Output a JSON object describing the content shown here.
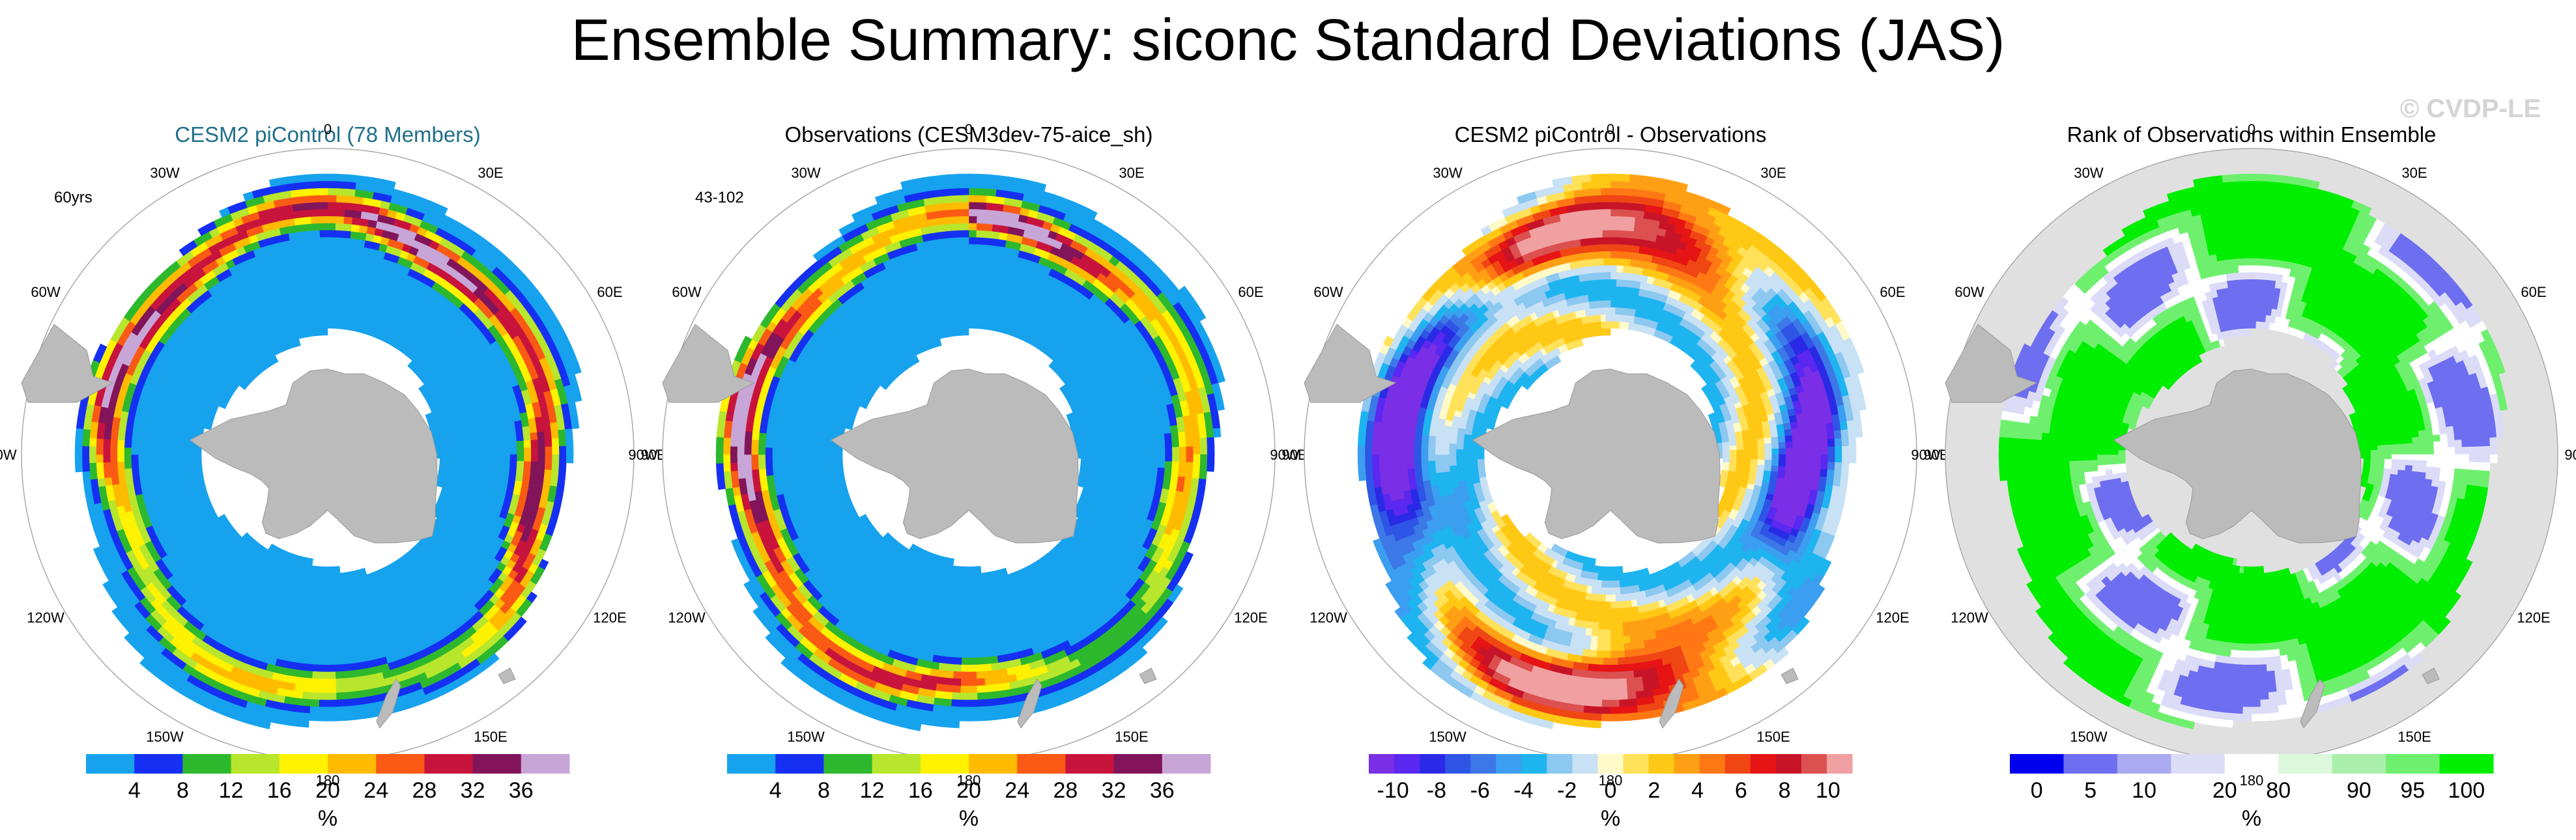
{
  "figure": {
    "title": "Ensemble Summary: siconc Standard Deviations (JAS)",
    "watermark": "© CVDP-LE",
    "land_color": "#bbbbbb",
    "ocean_color": "#ffffff"
  },
  "lon_labels": [
    "0",
    "30E",
    "60E",
    "90E",
    "120E",
    "150E",
    "180",
    "150W",
    "120W",
    "90W",
    "60W",
    "30W"
  ],
  "chart_data": [
    {
      "type": "heatmap",
      "title": "CESM2 piControl (78 Members)",
      "title_color": "#1f6f8b",
      "corner_label": "60yrs",
      "field": "model",
      "colorbar": {
        "colors": [
          "#17a2ee",
          "#1530f2",
          "#2db82d",
          "#b8e62d",
          "#fff200",
          "#ffbb00",
          "#fa5a14",
          "#c8143c",
          "#82145a",
          "#c8a5d7"
        ],
        "labels": [
          "4",
          "8",
          "12",
          "16",
          "20",
          "24",
          "28",
          "32",
          "36"
        ],
        "unit": "%"
      }
    },
    {
      "type": "heatmap",
      "title": "Observations (CESM3dev-75-aice_sh)",
      "title_color": "#000000",
      "corner_label": "43-102",
      "field": "obs",
      "colorbar": {
        "colors": [
          "#17a2ee",
          "#1530f2",
          "#2db82d",
          "#b8e62d",
          "#fff200",
          "#ffbb00",
          "#fa5a14",
          "#c8143c",
          "#82145a",
          "#c8a5d7"
        ],
        "labels": [
          "4",
          "8",
          "12",
          "16",
          "20",
          "24",
          "28",
          "32",
          "36"
        ],
        "unit": "%"
      }
    },
    {
      "type": "heatmap",
      "title": "CESM2 piControl - Observations",
      "title_color": "#000000",
      "corner_label": "",
      "field": "diff",
      "colorbar": {
        "colors": [
          "#7a2ee6",
          "#5a28f0",
          "#2a2ae6",
          "#2e55e6",
          "#3c78e6",
          "#3c9ef0",
          "#1eb4f0",
          "#8cc8f0",
          "#c8e1f5",
          "#fffac8",
          "#ffe15a",
          "#ffc814",
          "#ffa014",
          "#ff7814",
          "#f04614",
          "#e61414",
          "#c81428",
          "#dc5050",
          "#f0a0a0"
        ],
        "labels": [
          "-10",
          "-8",
          "-6",
          "-4",
          "-2",
          "0",
          "2",
          "4",
          "6",
          "8",
          "10"
        ],
        "unit": "%"
      }
    },
    {
      "type": "heatmap",
      "title": "Rank of Observations within Ensemble",
      "title_color": "#000000",
      "corner_label": "",
      "field": "rank",
      "colorbar": {
        "colors": [
          "#0000ee",
          "#6e6ef0",
          "#aaaaf0",
          "#dcdcf8",
          "#ffffff",
          "#dcf8dc",
          "#aaf0aa",
          "#6ef06e",
          "#00ee00"
        ],
        "labels": [
          "0",
          "5",
          "10",
          "20",
          "80",
          "90",
          "95",
          "100"
        ],
        "unit": "%"
      }
    }
  ]
}
